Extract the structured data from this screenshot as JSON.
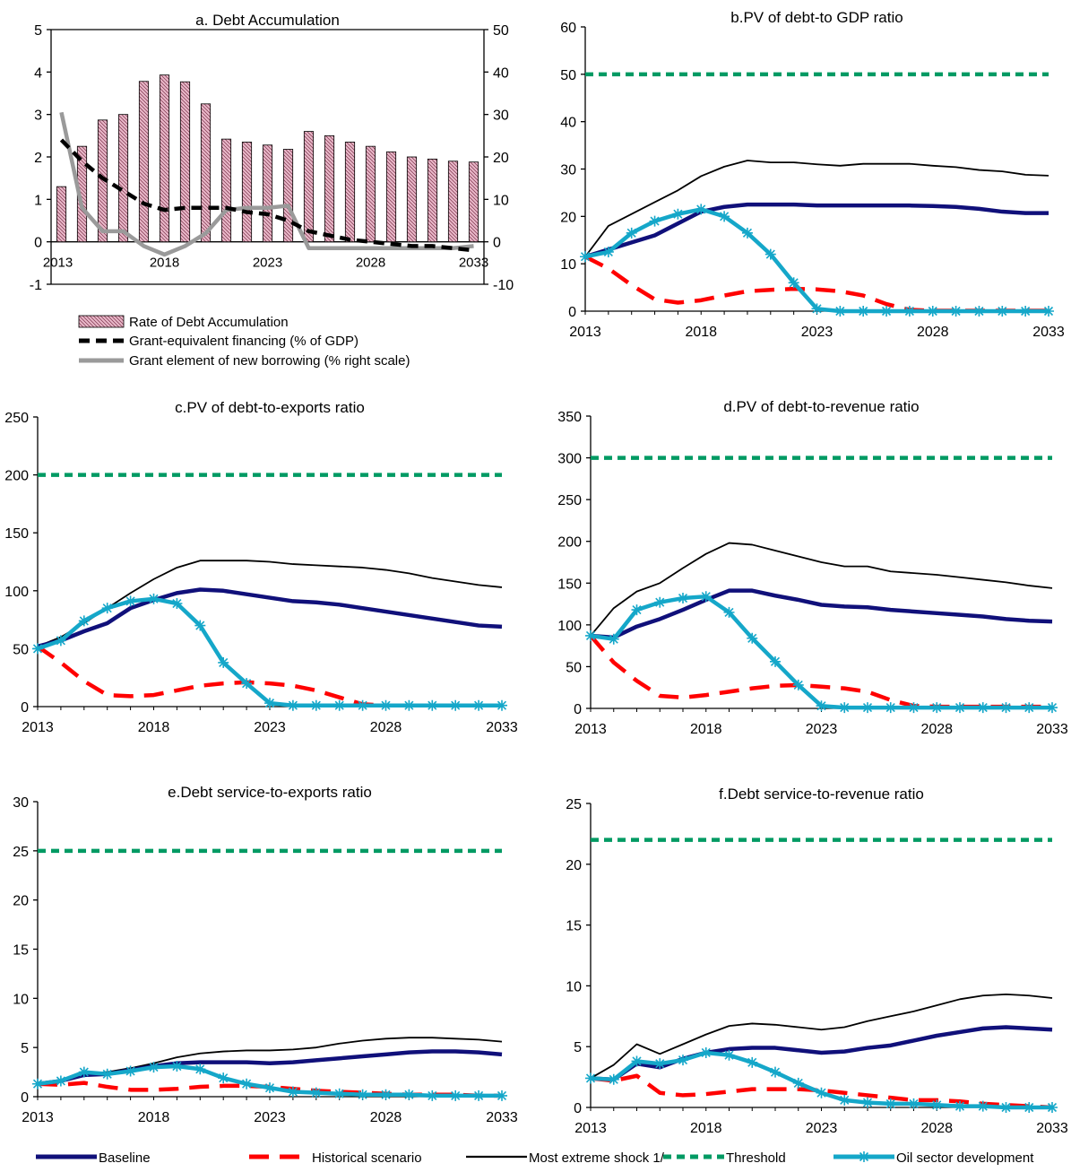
{
  "years": [
    "2013",
    "2014",
    "2015",
    "2016",
    "2017",
    "2018",
    "2019",
    "2020",
    "2021",
    "2022",
    "2023",
    "2024",
    "2025",
    "2026",
    "2027",
    "2028",
    "2029",
    "2030",
    "2031",
    "2032",
    "2033"
  ],
  "styles": {
    "baseline": "#10107a",
    "historical": "#ff0000",
    "extreme": "#000000",
    "threshold": "#009a63",
    "oil": "#15a7c9",
    "bars": "#e9b8c9",
    "grant_equiv": "#000000",
    "grant_element": "#9a9a9a"
  },
  "legend_bottom": {
    "baseline": "Baseline",
    "historical": "Historical scenario",
    "extreme": "Most extreme shock 1/",
    "threshold": "Threshold",
    "oil": "Oil sector development"
  },
  "chart_data": [
    {
      "id": "a",
      "type": "bar",
      "title": "a. Debt Accumulation",
      "xlabel": "",
      "ylabel": "",
      "ylim": [
        -1,
        5
      ],
      "yticks": [
        -1,
        0,
        1,
        2,
        3,
        4,
        5
      ],
      "y2lim": [
        -10,
        50
      ],
      "y2ticks": [
        -10,
        0,
        10,
        20,
        30,
        40,
        50
      ],
      "xtick_labels": [
        "2013",
        "2018",
        "2023",
        "2028",
        "2033"
      ],
      "legend": {
        "bars": "Rate of Debt Accumulation",
        "grant_equiv": "Grant-equivalent financing (% of GDP)",
        "grant_element": "Grant element of new borrowing (% right scale)"
      },
      "series": [
        {
          "key": "bars",
          "axis": "left",
          "values": [
            1.3,
            2.25,
            2.87,
            3.0,
            3.78,
            3.93,
            3.77,
            3.25,
            2.42,
            2.35,
            2.28,
            2.18,
            2.6,
            2.5,
            2.35,
            2.25,
            2.12,
            2.0,
            1.95,
            1.9,
            1.88
          ]
        },
        {
          "key": "grant_equiv",
          "axis": "left",
          "values": [
            2.4,
            1.9,
            1.5,
            1.2,
            0.9,
            0.75,
            0.8,
            0.8,
            0.8,
            0.7,
            0.65,
            0.5,
            0.25,
            0.15,
            0.05,
            0.0,
            -0.05,
            -0.1,
            -0.1,
            -0.15,
            -0.2
          ]
        },
        {
          "key": "grant_element",
          "axis": "right",
          "values": [
            30.5,
            8.0,
            2.5,
            2.5,
            -1.0,
            -3.0,
            -1.0,
            2.0,
            7.5,
            8.0,
            8.0,
            8.5,
            -1.5,
            -1.5,
            -1.5,
            -1.5,
            -1.5,
            -1.5,
            -1.5,
            -1.5,
            -1.0
          ]
        }
      ]
    },
    {
      "id": "b",
      "type": "line",
      "title": "b.PV of debt-to GDP ratio",
      "xlabel": "",
      "ylabel": "",
      "ylim": [
        0,
        60
      ],
      "yticks": [
        0,
        10,
        20,
        30,
        40,
        50,
        60
      ],
      "xtick_labels": [
        "2013",
        "2018",
        "2023",
        "2028",
        "2033"
      ],
      "series": [
        {
          "key": "baseline",
          "values": [
            11.5,
            13,
            14.5,
            16,
            18.5,
            21,
            22,
            22.5,
            22.5,
            22.5,
            22.3,
            22.3,
            22.3,
            22.3,
            22.3,
            22.2,
            22.0,
            21.6,
            21.0,
            20.7,
            20.7
          ]
        },
        {
          "key": "historical",
          "values": [
            11.5,
            9,
            5.5,
            2.5,
            1.8,
            2.3,
            3.3,
            4.2,
            4.5,
            4.7,
            4.6,
            4.2,
            3.3,
            1.5,
            0.3,
            0.1,
            0.1,
            0.1,
            0.1,
            0.1,
            0.1
          ]
        },
        {
          "key": "extreme",
          "values": [
            11.5,
            18,
            20.5,
            23,
            25.5,
            28.5,
            30.5,
            31.8,
            31.4,
            31.4,
            31.0,
            30.7,
            31.1,
            31.1,
            31.1,
            30.7,
            30.4,
            29.8,
            29.5,
            28.8,
            28.6
          ]
        },
        {
          "key": "threshold",
          "values": [
            50,
            50,
            50,
            50,
            50,
            50,
            50,
            50,
            50,
            50,
            50,
            50,
            50,
            50,
            50,
            50,
            50,
            50,
            50,
            50,
            50
          ]
        },
        {
          "key": "oil",
          "values": [
            11.5,
            12.5,
            16.5,
            19,
            20.5,
            21.5,
            20,
            16.5,
            12,
            6,
            0.5,
            0,
            0,
            0,
            0,
            0,
            0,
            0,
            0,
            0,
            0
          ]
        }
      ]
    },
    {
      "id": "c",
      "type": "line",
      "title": "c.PV of debt-to-exports ratio",
      "xlabel": "",
      "ylabel": "",
      "ylim": [
        0,
        250
      ],
      "yticks": [
        0,
        50,
        100,
        150,
        200,
        250
      ],
      "xtick_labels": [
        "2013",
        "2018",
        "2023",
        "2028",
        "2033"
      ],
      "series": [
        {
          "key": "baseline",
          "values": [
            52,
            57,
            65,
            72,
            85,
            92,
            98,
            101,
            100,
            97,
            94,
            91,
            90,
            88,
            85,
            82,
            79,
            76,
            73,
            70,
            69
          ]
        },
        {
          "key": "historical",
          "values": [
            52,
            38,
            22,
            10,
            9,
            10,
            14,
            18,
            20,
            21,
            20,
            18,
            14,
            8,
            2,
            1,
            1,
            1,
            1,
            1,
            1
          ]
        },
        {
          "key": "extreme",
          "values": [
            52,
            60,
            72,
            85,
            98,
            110,
            120,
            126,
            126,
            126,
            125,
            123,
            122,
            121,
            120,
            118,
            115,
            111,
            108,
            105,
            103
          ]
        },
        {
          "key": "threshold",
          "values": [
            200,
            200,
            200,
            200,
            200,
            200,
            200,
            200,
            200,
            200,
            200,
            200,
            200,
            200,
            200,
            200,
            200,
            200,
            200,
            200,
            200
          ]
        },
        {
          "key": "oil",
          "values": [
            50,
            57,
            74,
            85,
            91,
            93,
            89,
            70,
            38,
            20,
            3,
            1,
            1,
            1,
            1,
            1,
            1,
            1,
            1,
            1,
            1
          ]
        }
      ]
    },
    {
      "id": "d",
      "type": "line",
      "title": "d.PV of debt-to-revenue ratio",
      "xlabel": "",
      "ylabel": "",
      "ylim": [
        0,
        350
      ],
      "yticks": [
        0,
        50,
        100,
        150,
        200,
        250,
        300,
        350
      ],
      "xtick_labels": [
        "2013",
        "2018",
        "2023",
        "2028",
        "2033"
      ],
      "series": [
        {
          "key": "baseline",
          "values": [
            87,
            85,
            98,
            107,
            118,
            130,
            141,
            141,
            135,
            130,
            124,
            122,
            121,
            118,
            116,
            114,
            112,
            110,
            107,
            105,
            104
          ]
        },
        {
          "key": "historical",
          "values": [
            87,
            55,
            33,
            15,
            13,
            16,
            20,
            24,
            27,
            28,
            26,
            24,
            20,
            10,
            3,
            2,
            2,
            2,
            2,
            2,
            2
          ]
        },
        {
          "key": "extreme",
          "values": [
            87,
            120,
            140,
            150,
            168,
            185,
            198,
            196,
            189,
            182,
            175,
            170,
            170,
            164,
            162,
            160,
            157,
            154,
            151,
            147,
            144
          ]
        },
        {
          "key": "threshold",
          "values": [
            300,
            300,
            300,
            300,
            300,
            300,
            300,
            300,
            300,
            300,
            300,
            300,
            300,
            300,
            300,
            300,
            300,
            300,
            300,
            300,
            300
          ]
        },
        {
          "key": "oil",
          "values": [
            87,
            83,
            118,
            127,
            132,
            134,
            115,
            84,
            56,
            28,
            3,
            1,
            1,
            1,
            1,
            1,
            1,
            1,
            1,
            1,
            1
          ]
        }
      ]
    },
    {
      "id": "e",
      "type": "line",
      "title": "e.Debt service-to-exports ratio",
      "xlabel": "",
      "ylabel": "",
      "ylim": [
        0,
        30
      ],
      "yticks": [
        0,
        5,
        10,
        15,
        20,
        25,
        30
      ],
      "xtick_labels": [
        "2013",
        "2018",
        "2023",
        "2028",
        "2033"
      ],
      "series": [
        {
          "key": "baseline",
          "values": [
            1.3,
            1.6,
            2.2,
            2.3,
            2.7,
            3.1,
            3.4,
            3.5,
            3.5,
            3.5,
            3.4,
            3.5,
            3.7,
            3.9,
            4.1,
            4.3,
            4.5,
            4.6,
            4.6,
            4.5,
            4.3
          ]
        },
        {
          "key": "historical",
          "values": [
            1.3,
            1.2,
            1.4,
            1.0,
            0.7,
            0.7,
            0.8,
            1.0,
            1.1,
            1.1,
            1.0,
            0.8,
            0.6,
            0.5,
            0.4,
            0.3,
            0.2,
            0.2,
            0.2,
            0.1,
            0.1
          ]
        },
        {
          "key": "extreme",
          "values": [
            1.3,
            1.6,
            2.3,
            2.5,
            2.9,
            3.4,
            4.0,
            4.4,
            4.6,
            4.7,
            4.7,
            4.8,
            5.0,
            5.4,
            5.7,
            5.9,
            6.0,
            6.0,
            5.9,
            5.8,
            5.6
          ]
        },
        {
          "key": "threshold",
          "values": [
            25,
            25,
            25,
            25,
            25,
            25,
            25,
            25,
            25,
            25,
            25,
            25,
            25,
            25,
            25,
            25,
            25,
            25,
            25,
            25,
            25
          ]
        },
        {
          "key": "oil",
          "values": [
            1.3,
            1.6,
            2.5,
            2.3,
            2.6,
            3.0,
            3.1,
            2.8,
            1.9,
            1.3,
            0.9,
            0.5,
            0.4,
            0.3,
            0.2,
            0.2,
            0.2,
            0.1,
            0.1,
            0.1,
            0.1
          ]
        }
      ]
    },
    {
      "id": "f",
      "type": "line",
      "title": "f.Debt service-to-revenue ratio",
      "xlabel": "",
      "ylabel": "",
      "ylim": [
        0,
        25
      ],
      "yticks": [
        0,
        5,
        10,
        15,
        20,
        25
      ],
      "xtick_labels": [
        "2013",
        "2018",
        "2023",
        "2028",
        "2033"
      ],
      "series": [
        {
          "key": "baseline",
          "values": [
            2.4,
            2.3,
            3.6,
            3.3,
            4.0,
            4.5,
            4.8,
            4.9,
            4.9,
            4.7,
            4.5,
            4.6,
            4.9,
            5.1,
            5.5,
            5.9,
            6.2,
            6.5,
            6.6,
            6.5,
            6.4
          ]
        },
        {
          "key": "historical",
          "values": [
            2.4,
            2.2,
            2.6,
            1.2,
            1.0,
            1.1,
            1.3,
            1.5,
            1.5,
            1.5,
            1.4,
            1.2,
            1.0,
            0.8,
            0.6,
            0.6,
            0.5,
            0.3,
            0.2,
            0.1,
            0.0
          ]
        },
        {
          "key": "extreme",
          "values": [
            2.4,
            3.5,
            5.2,
            4.4,
            5.2,
            6.0,
            6.7,
            6.9,
            6.8,
            6.6,
            6.4,
            6.6,
            7.1,
            7.5,
            7.9,
            8.4,
            8.9,
            9.2,
            9.3,
            9.2,
            9.0
          ]
        },
        {
          "key": "threshold",
          "values": [
            22,
            22,
            22,
            22,
            22,
            22,
            22,
            22,
            22,
            22,
            22,
            22,
            22,
            22,
            22,
            22,
            22,
            22,
            22,
            22,
            22
          ]
        },
        {
          "key": "oil",
          "values": [
            2.4,
            2.3,
            3.8,
            3.6,
            3.9,
            4.5,
            4.3,
            3.7,
            2.9,
            2.0,
            1.2,
            0.6,
            0.4,
            0.3,
            0.3,
            0.2,
            0.1,
            0.1,
            0.0,
            0.0,
            0.0
          ]
        }
      ]
    }
  ]
}
